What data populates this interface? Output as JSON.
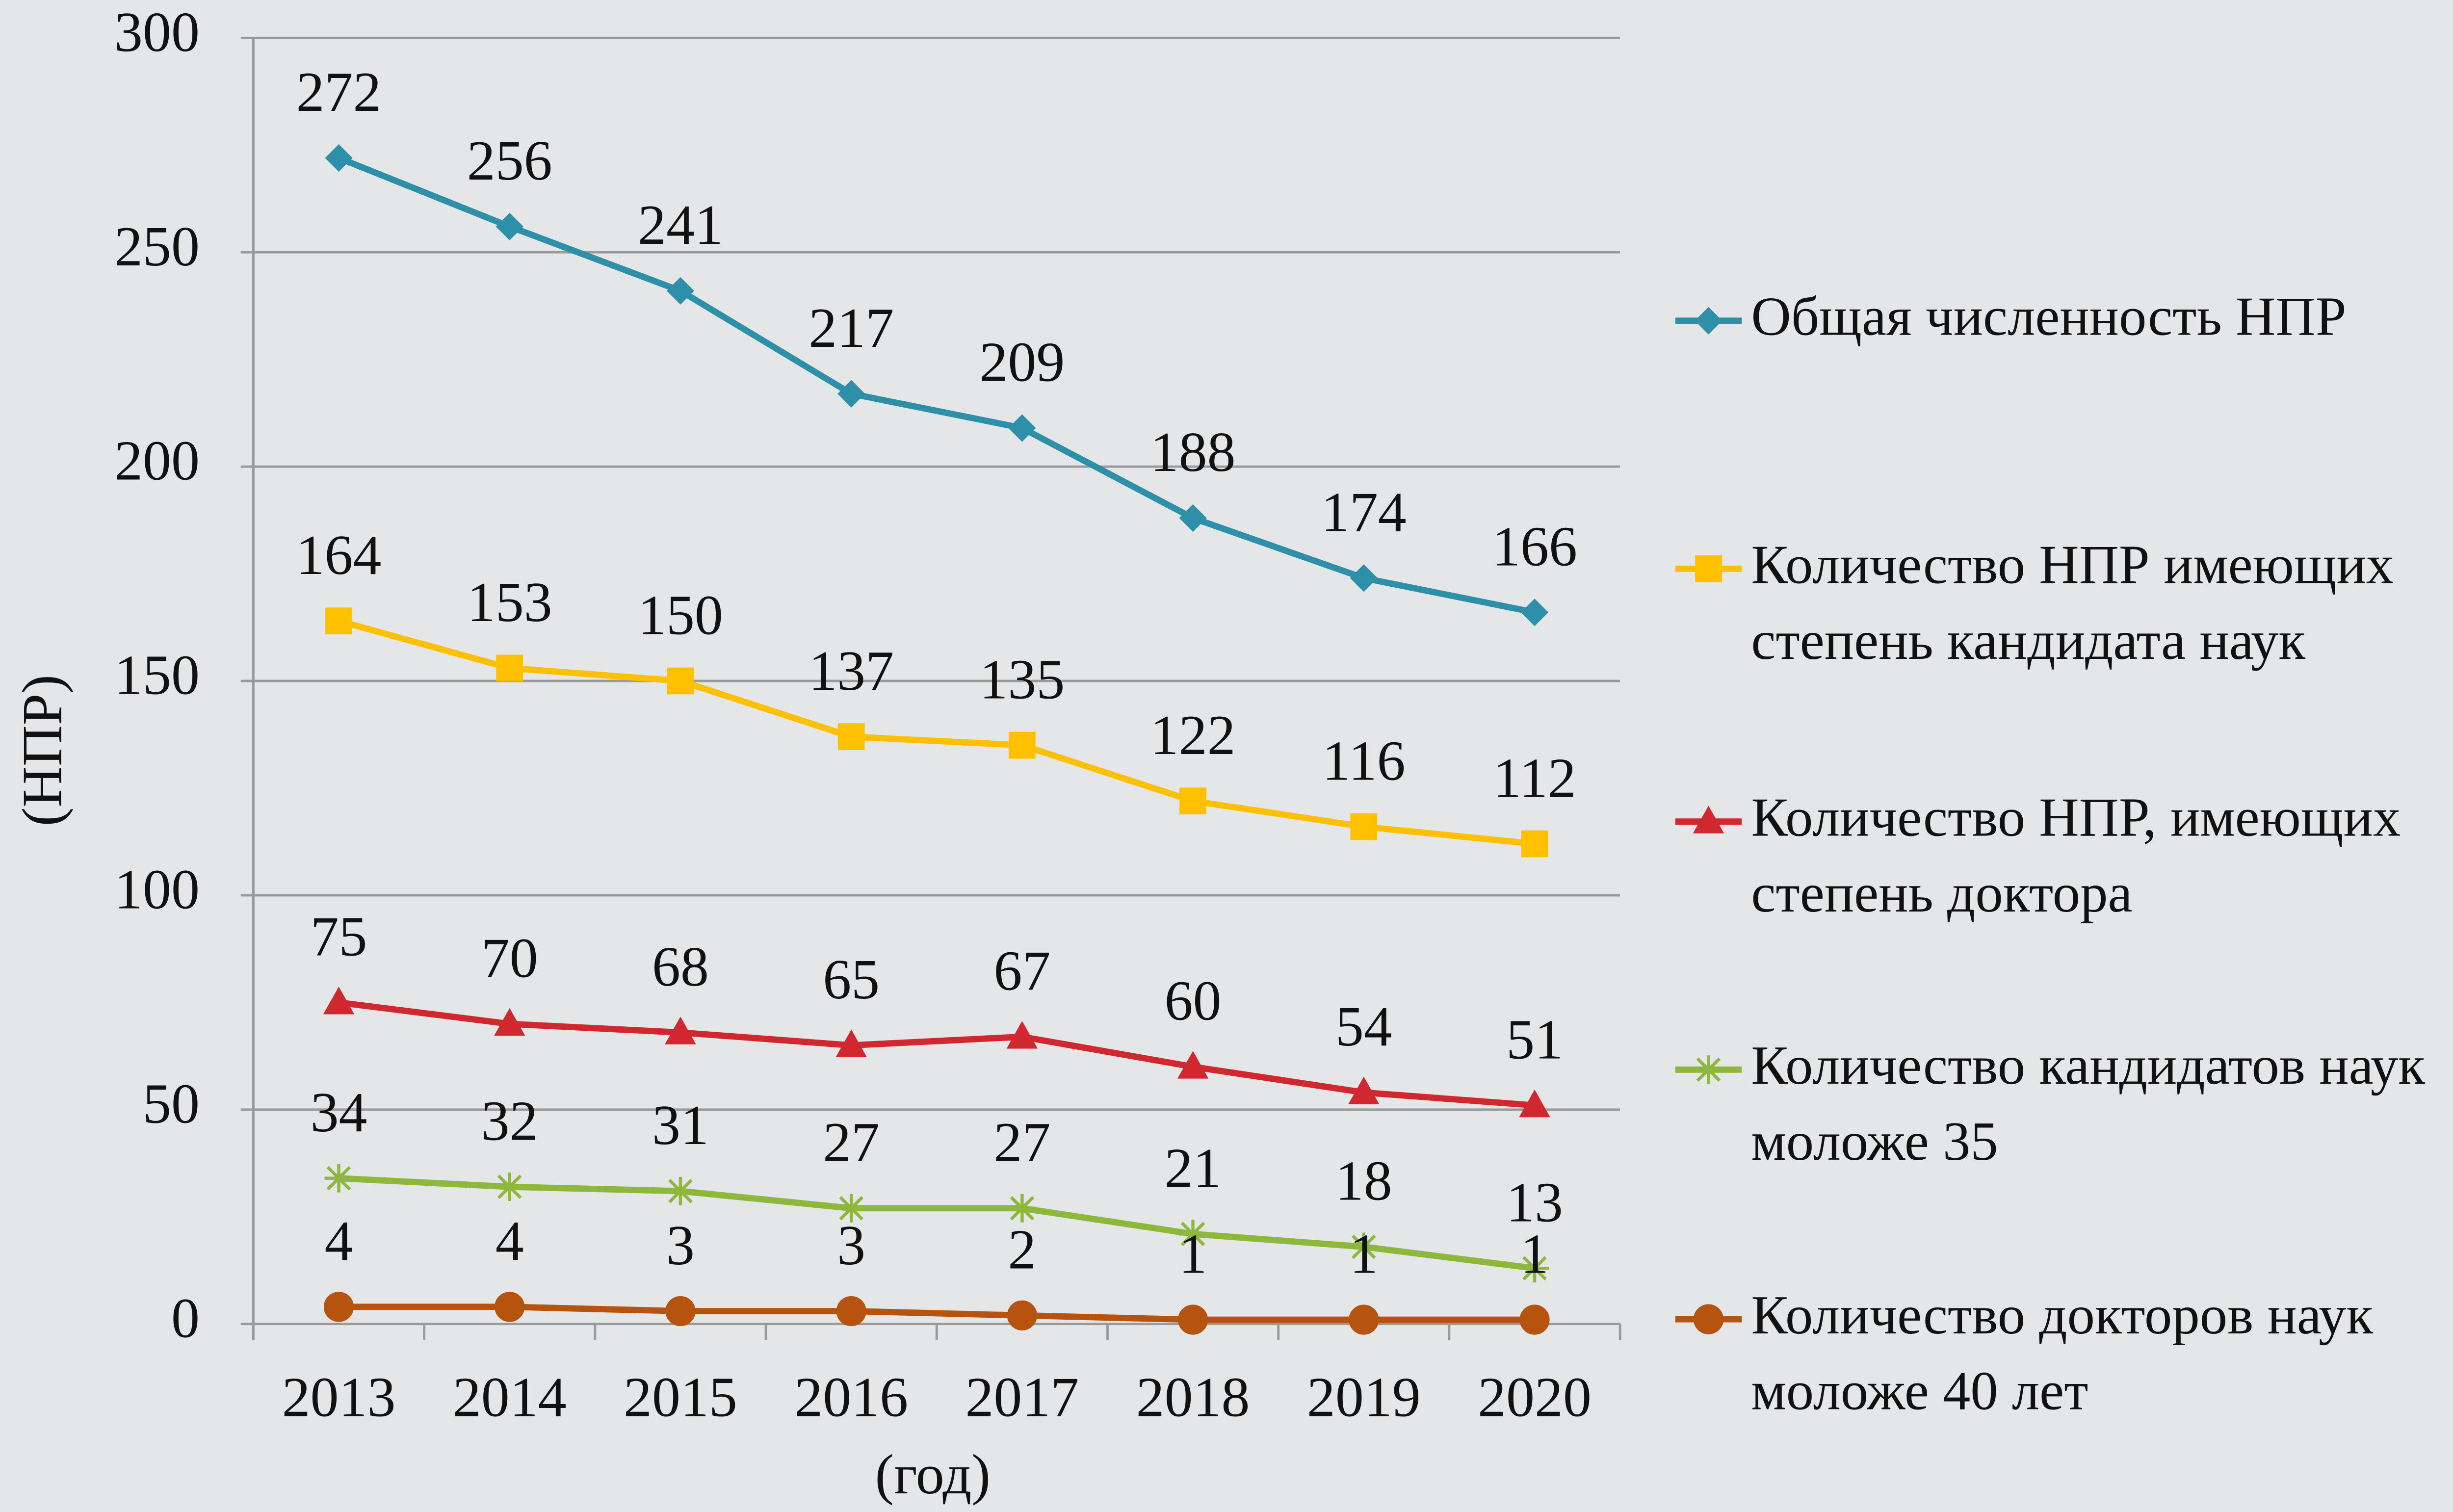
{
  "chart_data": {
    "type": "line",
    "x_label": "(год)",
    "y_label": "(НПР)",
    "categories": [
      "2013",
      "2014",
      "2015",
      "2016",
      "2017",
      "2018",
      "2019",
      "2020"
    ],
    "ylim": [
      0,
      300
    ],
    "yticks": [
      0,
      50,
      100,
      150,
      200,
      250,
      300
    ],
    "grid": true,
    "legend": "right",
    "series": [
      {
        "name": "Общая численность НПР",
        "color": "#2e8fa8",
        "marker": "diamond",
        "values": [
          272,
          256,
          241,
          217,
          209,
          188,
          174,
          166
        ]
      },
      {
        "name": "Количество НПР имеющих степень кандидата наук",
        "color": "#ffc000",
        "marker": "square",
        "values": [
          164,
          153,
          150,
          137,
          135,
          122,
          116,
          112
        ]
      },
      {
        "name": "Количество НПР, имеющих степень доктора",
        "color": "#d0282e",
        "marker": "triangle",
        "values": [
          75,
          70,
          68,
          65,
          67,
          60,
          54,
          51
        ]
      },
      {
        "name": "Количество кандидатов наук моложе 35",
        "color": "#8db83c",
        "marker": "star",
        "values": [
          34,
          32,
          31,
          27,
          27,
          21,
          18,
          13
        ]
      },
      {
        "name": "Количество докторов наук моложе 40 лет",
        "color": "#b5530f",
        "marker": "circle",
        "values": [
          4,
          4,
          3,
          3,
          2,
          1,
          1,
          1
        ]
      }
    ]
  }
}
